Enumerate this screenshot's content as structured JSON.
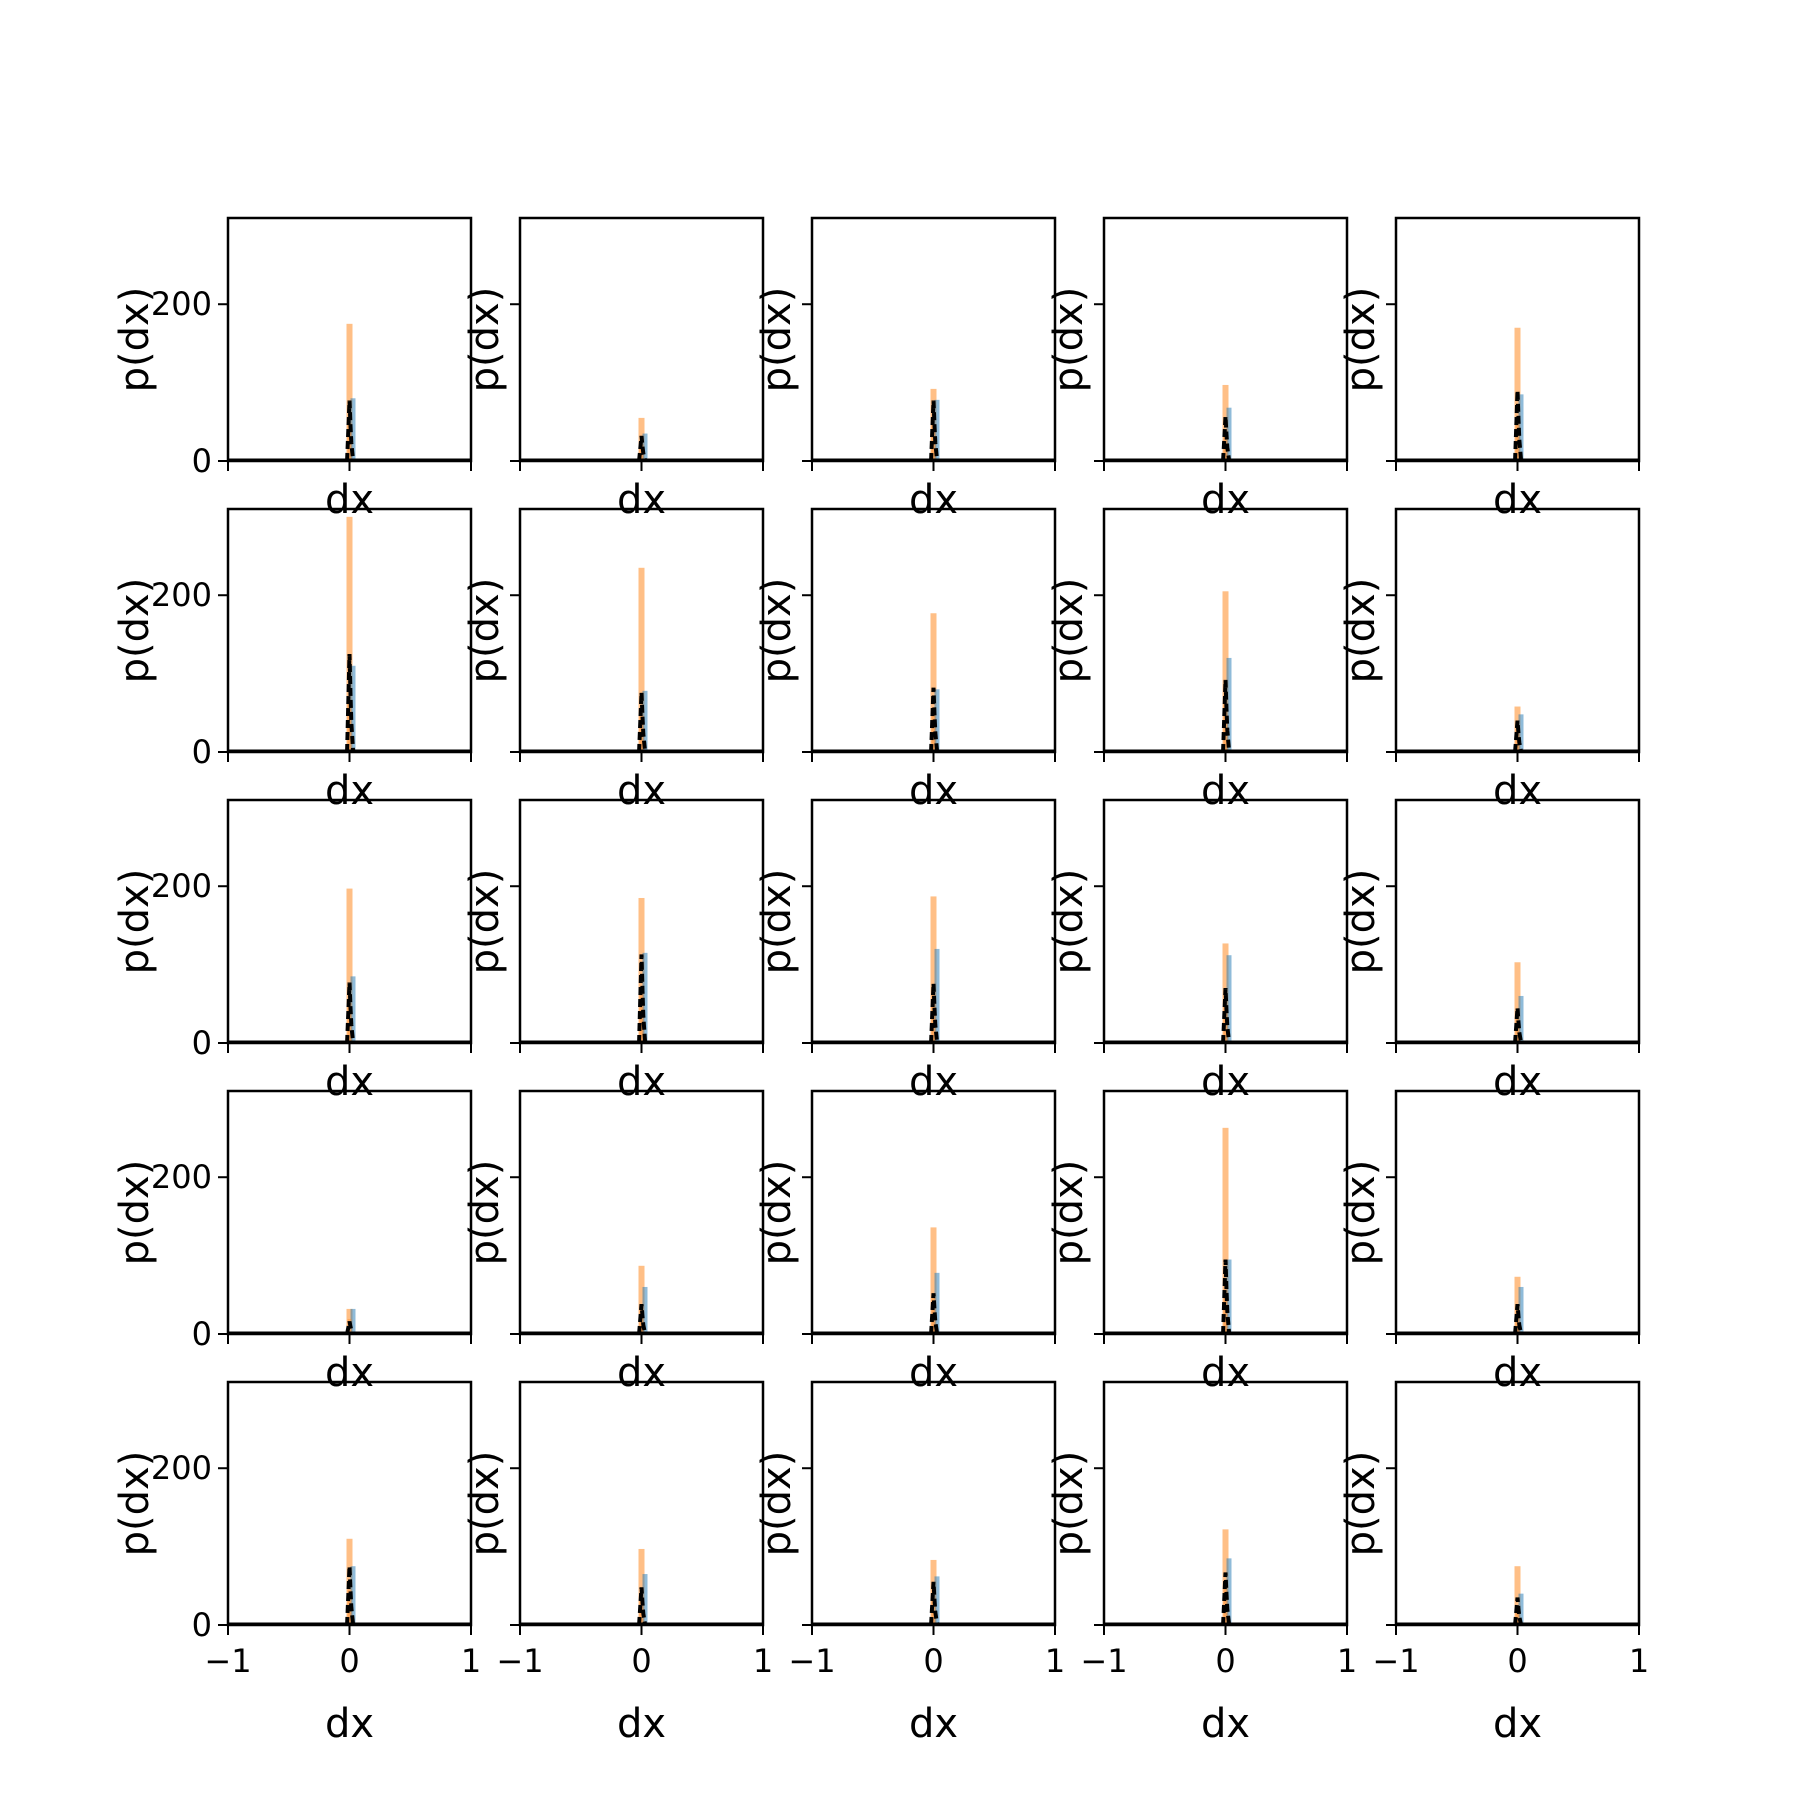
{
  "chart_data": {
    "type": "histogram-grid",
    "rows": 5,
    "cols": 5,
    "xlim": [
      -1,
      1
    ],
    "ylim": [
      0,
      310
    ],
    "xticks": [
      -1,
      0,
      1
    ],
    "xtick_labels": [
      "−1",
      "0",
      "1"
    ],
    "yticks": [
      0,
      200
    ],
    "ytick_labels": [
      "0",
      "200"
    ],
    "xlabel": "dx",
    "ylabel": "p(dx)",
    "colors": {
      "orange": "#ff7f0e",
      "blue": "#1f77b4",
      "black": "#000000"
    },
    "panels": [
      {
        "orange": 175,
        "blue": 80,
        "black": 77
      },
      {
        "orange": 55,
        "blue": 35,
        "black": 32
      },
      {
        "orange": 92,
        "blue": 78,
        "black": 77
      },
      {
        "orange": 97,
        "blue": 68,
        "black": 57
      },
      {
        "orange": 170,
        "blue": 85,
        "black": 90
      },
      {
        "orange": 300,
        "blue": 110,
        "black": 125
      },
      {
        "orange": 235,
        "blue": 78,
        "black": 76
      },
      {
        "orange": 177,
        "blue": 80,
        "black": 82
      },
      {
        "orange": 205,
        "blue": 120,
        "black": 92
      },
      {
        "orange": 58,
        "blue": 48,
        "black": 40
      },
      {
        "orange": 197,
        "blue": 85,
        "black": 77
      },
      {
        "orange": 185,
        "blue": 115,
        "black": 113
      },
      {
        "orange": 187,
        "blue": 120,
        "black": 76
      },
      {
        "orange": 127,
        "blue": 112,
        "black": 70
      },
      {
        "orange": 103,
        "blue": 60,
        "black": 45
      },
      {
        "orange": 32,
        "blue": 32,
        "black": 16
      },
      {
        "orange": 87,
        "blue": 60,
        "black": 38
      },
      {
        "orange": 136,
        "blue": 78,
        "black": 52
      },
      {
        "orange": 263,
        "blue": 95,
        "black": 95
      },
      {
        "orange": 73,
        "blue": 60,
        "black": 38
      },
      {
        "orange": 110,
        "blue": 75,
        "black": 75
      },
      {
        "orange": 97,
        "blue": 65,
        "black": 48
      },
      {
        "orange": 83,
        "blue": 62,
        "black": 55
      },
      {
        "orange": 122,
        "blue": 85,
        "black": 67
      },
      {
        "orange": 75,
        "blue": 40,
        "black": 35
      }
    ]
  }
}
